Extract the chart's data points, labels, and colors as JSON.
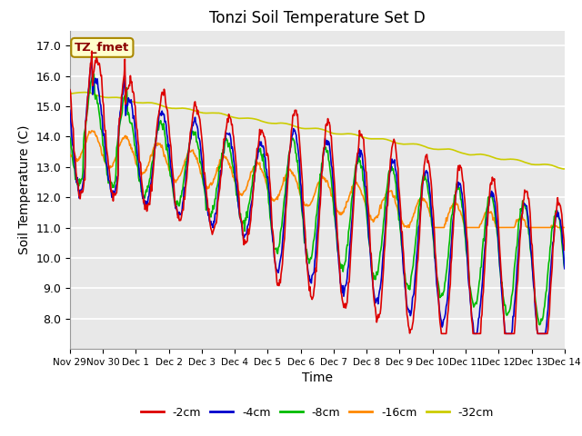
{
  "title": "Tonzi Soil Temperature Set D",
  "xlabel": "Time",
  "ylabel": "Soil Temperature (C)",
  "ylim": [
    7.0,
    17.5
  ],
  "yticks": [
    8.0,
    9.0,
    10.0,
    11.0,
    12.0,
    13.0,
    14.0,
    15.0,
    16.0,
    17.0
  ],
  "series_labels": [
    "-2cm",
    "-4cm",
    "-8cm",
    "-16cm",
    "-32cm"
  ],
  "series_colors": [
    "#dd0000",
    "#0000cc",
    "#00bb00",
    "#ff8800",
    "#cccc00"
  ],
  "xtick_labels": [
    "Nov 29",
    "Nov 30",
    "Dec 1",
    "Dec 2",
    "Dec 3",
    "Dec 4",
    "Dec 5",
    "Dec 6",
    "Dec 7",
    "Dec 8",
    "Dec 9",
    "Dec 10",
    "Dec 11",
    "Dec 12",
    "Dec 13",
    "Dec 14"
  ],
  "annotation_text": "TZ_fmet",
  "annotation_bg": "#ffffcc",
  "annotation_border": "#aa8800",
  "bg_color": "#e8e8e8",
  "time_days": 15
}
